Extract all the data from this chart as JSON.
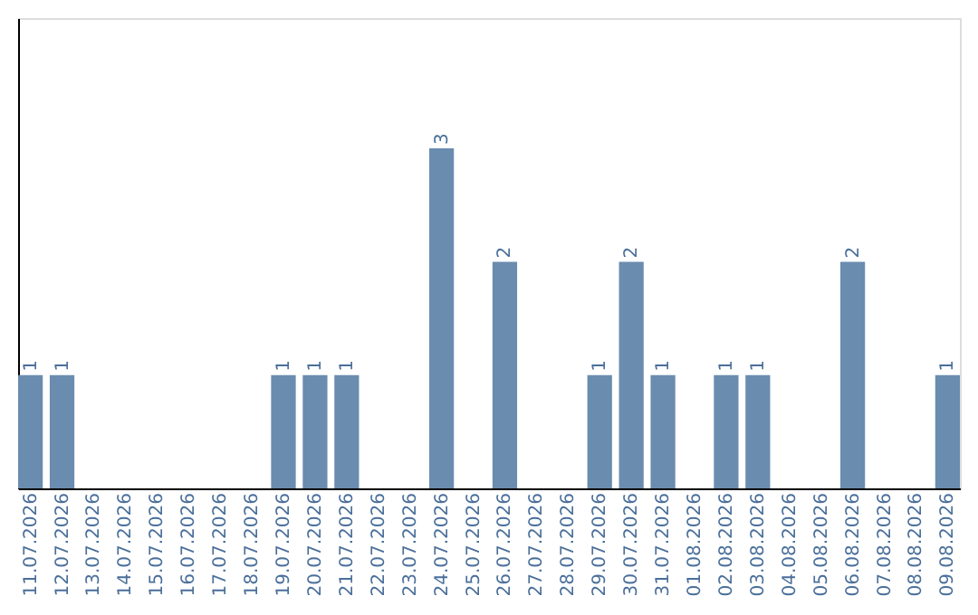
{
  "chart_data": {
    "type": "bar",
    "categories": [
      "11.07.2026",
      "12.07.2026",
      "13.07.2026",
      "14.07.2026",
      "15.07.2026",
      "16.07.2026",
      "17.07.2026",
      "18.07.2026",
      "19.07.2026",
      "20.07.2026",
      "21.07.2026",
      "22.07.2026",
      "23.07.2026",
      "24.07.2026",
      "25.07.2026",
      "26.07.2026",
      "27.07.2026",
      "28.07.2026",
      "29.07.2026",
      "30.07.2026",
      "31.07.2026",
      "01.08.2026",
      "02.08.2026",
      "03.08.2026",
      "04.08.2026",
      "05.08.2026",
      "06.08.2026",
      "07.08.2026",
      "08.08.2026",
      "09.08.2026"
    ],
    "values": [
      1,
      1,
      0,
      0,
      0,
      0,
      0,
      0,
      1,
      1,
      1,
      0,
      0,
      3,
      0,
      2,
      0,
      0,
      1,
      2,
      1,
      0,
      1,
      1,
      0,
      0,
      2,
      0,
      0,
      1
    ],
    "value_labels": [
      "1",
      "1",
      null,
      null,
      null,
      null,
      null,
      null,
      "1",
      "1",
      "1",
      null,
      null,
      "3",
      null,
      "2",
      null,
      null,
      "1",
      "2",
      "1",
      null,
      "1",
      "1",
      null,
      null,
      "2",
      null,
      null,
      "1"
    ],
    "color": "#6a8caf",
    "ylim": [
      0,
      4.15
    ],
    "tick_labels": "x",
    "grid": false
  }
}
